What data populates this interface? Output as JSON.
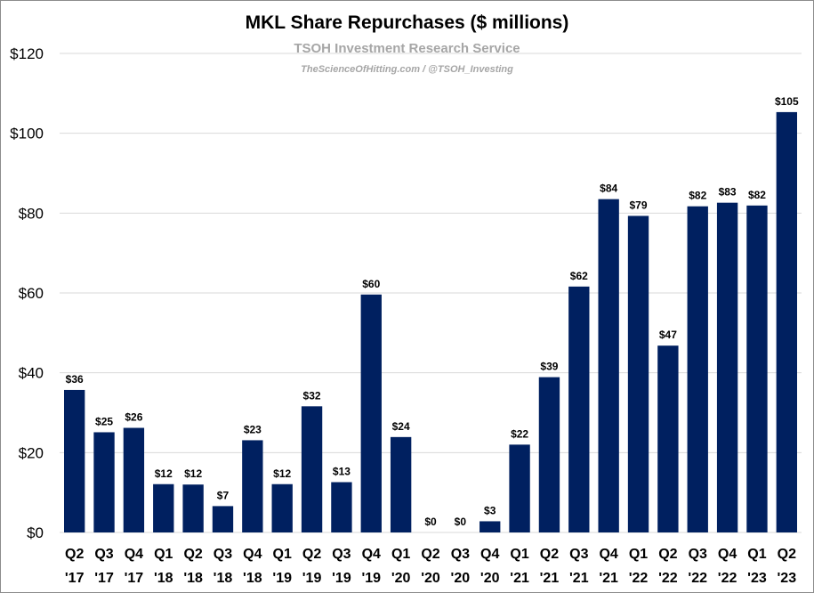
{
  "chart_data": {
    "type": "bar",
    "title": "MKL Share Repurchases ($ millions)",
    "subtitle": "TSOH Investment Research Service",
    "credit": "TheScienceOfHitting.com / @TSOH_Investing",
    "categories": [
      [
        "Q2",
        "'17"
      ],
      [
        "Q3",
        "'17"
      ],
      [
        "Q4",
        "'17"
      ],
      [
        "Q1",
        "'18"
      ],
      [
        "Q2",
        "'18"
      ],
      [
        "Q3",
        "'18"
      ],
      [
        "Q4",
        "'18"
      ],
      [
        "Q1",
        "'19"
      ],
      [
        "Q2",
        "'19"
      ],
      [
        "Q3",
        "'19"
      ],
      [
        "Q4",
        "'19"
      ],
      [
        "Q1",
        "'20"
      ],
      [
        "Q2",
        "'20"
      ],
      [
        "Q3",
        "'20"
      ],
      [
        "Q4",
        "'20"
      ],
      [
        "Q1",
        "'21"
      ],
      [
        "Q2",
        "'21"
      ],
      [
        "Q3",
        "'21"
      ],
      [
        "Q4",
        "'21"
      ],
      [
        "Q1",
        "'22"
      ],
      [
        "Q2",
        "'22"
      ],
      [
        "Q3",
        "'22"
      ],
      [
        "Q4",
        "'22"
      ],
      [
        "Q1",
        "'23"
      ],
      [
        "Q2",
        "'23"
      ]
    ],
    "values": [
      35.7,
      25.1,
      26.2,
      12.1,
      12.0,
      6.6,
      23.1,
      12.1,
      31.6,
      12.6,
      59.6,
      23.9,
      0.0,
      0.0,
      2.8,
      22.0,
      38.9,
      61.6,
      83.5,
      79.3,
      46.8,
      81.7,
      82.6,
      81.9,
      105.3
    ],
    "data_labels": [
      "$36",
      "$25",
      "$26",
      "$12",
      "$12",
      "$7",
      "$23",
      "$12",
      "$32",
      "$13",
      "$60",
      "$24",
      "$0",
      "$0",
      "$3",
      "$22",
      "$39",
      "$62",
      "$84",
      "$79",
      "$47",
      "$82",
      "$83",
      "$82",
      "$105"
    ],
    "y_ticks": [
      0,
      20,
      40,
      60,
      80,
      100,
      120
    ],
    "y_tick_labels": [
      "$0",
      "$20",
      "$40",
      "$60",
      "$80",
      "$100",
      "$120"
    ],
    "ylim": [
      0,
      120
    ],
    "grid": true,
    "legend": "none",
    "bar_color": "#002060",
    "grid_color": "#d9d9d9"
  }
}
